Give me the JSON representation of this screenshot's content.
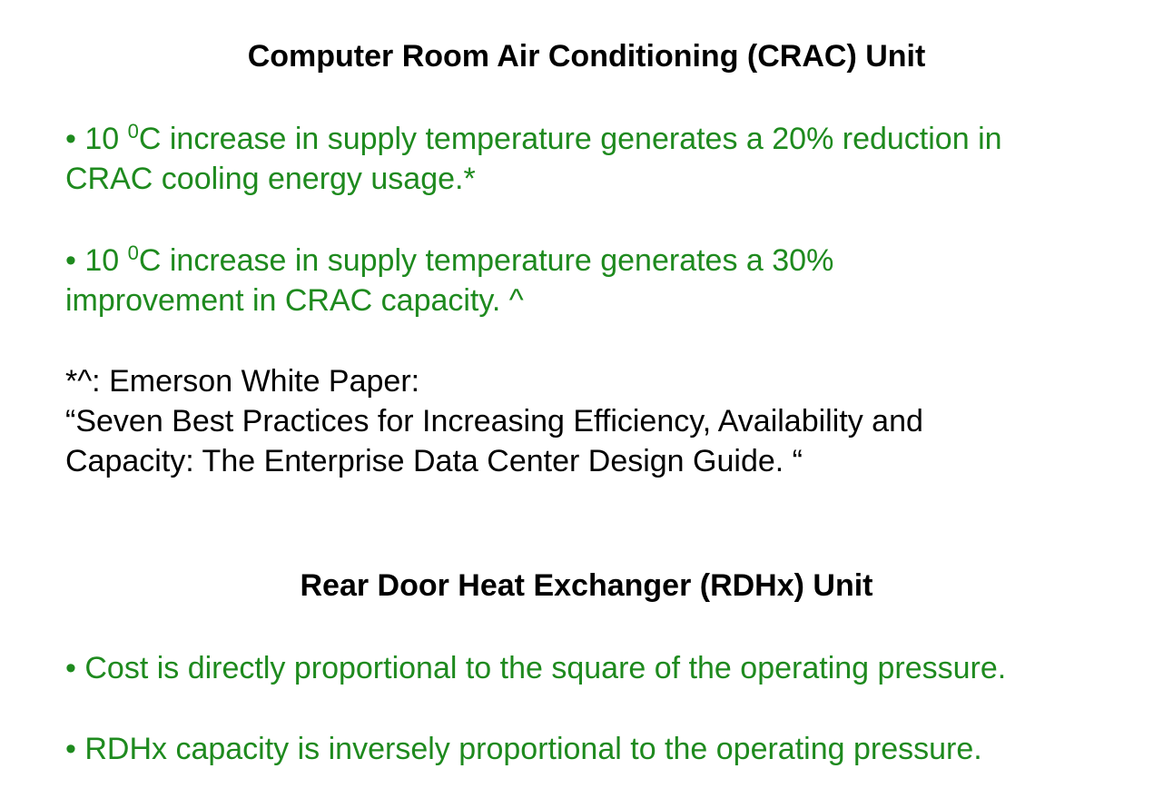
{
  "section1": {
    "title": "Computer Room Air Conditioning (CRAC) Unit",
    "bullet1": {
      "prefix": "• 10 ",
      "superscript": "0",
      "line1_rest": "C increase in supply temperature generates a 20% reduction in",
      "line2": "CRAC cooling energy usage.*"
    },
    "bullet2": {
      "prefix": "• 10 ",
      "superscript": "0",
      "line1_rest": "C increase in supply temperature generates a 30%",
      "line2": "improvement in CRAC capacity. ^"
    },
    "reference": {
      "line1": "*^: Emerson White Paper:",
      "line2": "“Seven Best Practices for Increasing Efficiency, Availability and",
      "line3": "Capacity: The Enterprise Data Center Design Guide. “"
    }
  },
  "section2": {
    "title": "Rear Door Heat Exchanger (RDHx) Unit",
    "bullet1": "• Cost is directly proportional to the square of the operating pressure.",
    "bullet2": "• RDHx capacity is inversely proportional to the operating pressure."
  },
  "colors": {
    "bullet_text": "#1e8a1e",
    "body_text": "#000000",
    "background": "#ffffff"
  }
}
